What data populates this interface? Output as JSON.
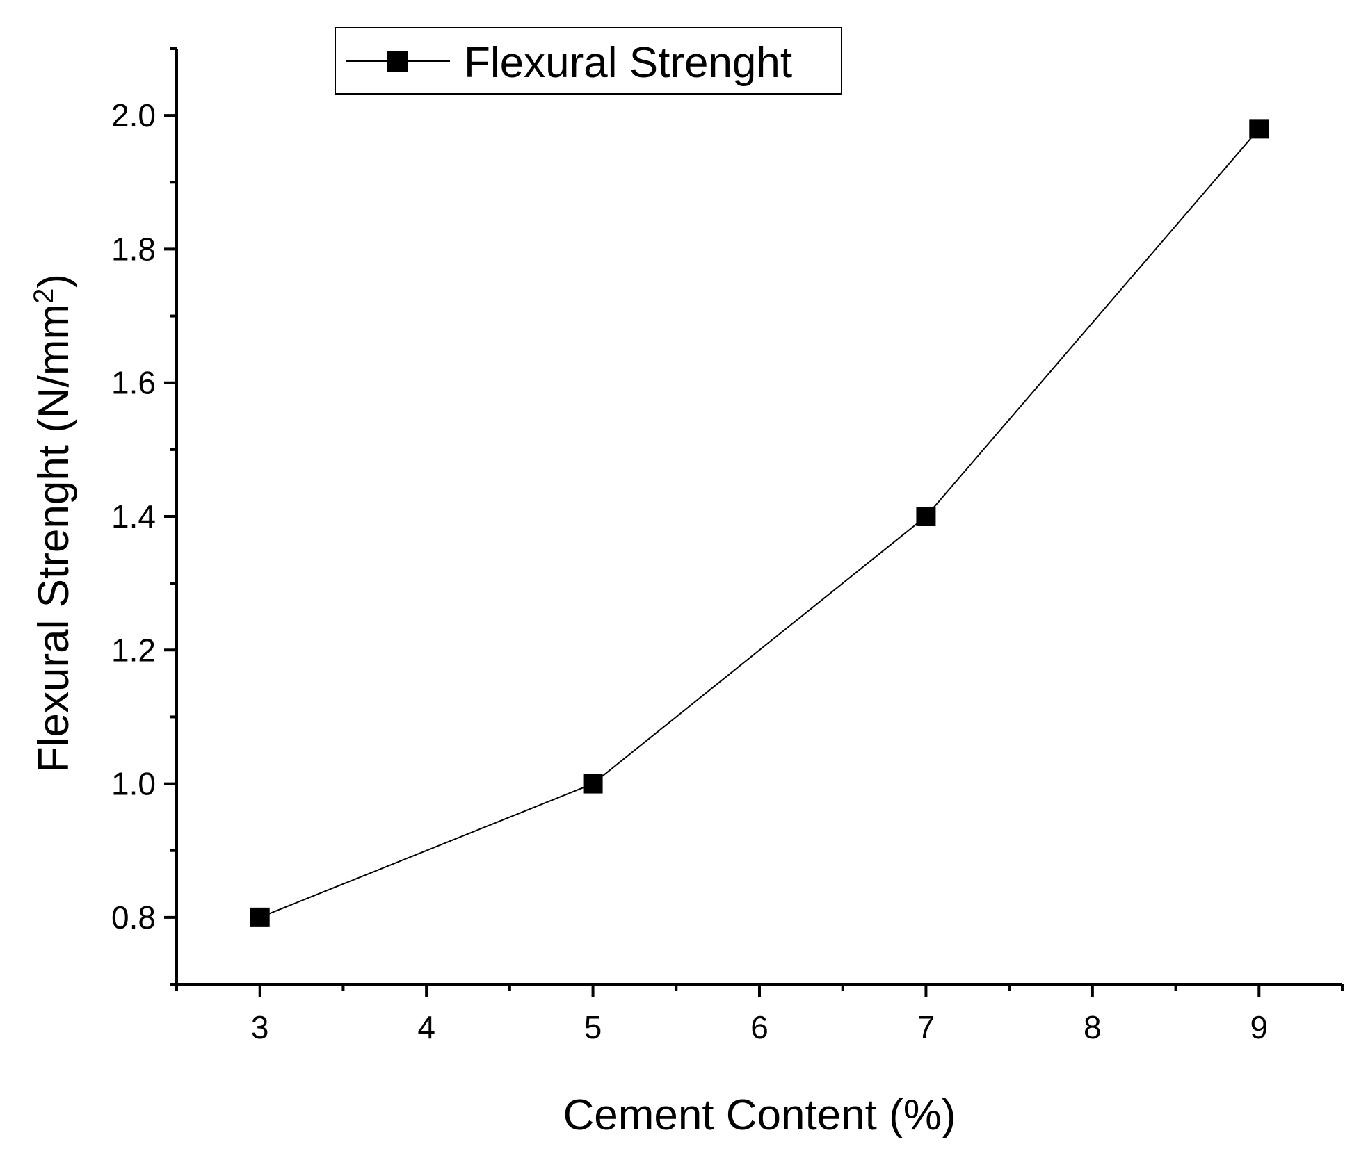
{
  "chart_data": {
    "type": "line",
    "title": "",
    "xlabel": "Cement Content (%)",
    "ylabel_main": "Flexural Strenght (N/mm",
    "ylabel_sup": "2",
    "ylabel_close": ")",
    "xlim": [
      2.5,
      9.5
    ],
    "ylim": [
      0.7,
      2.1
    ],
    "x_ticks": [
      3,
      4,
      5,
      6,
      7,
      8,
      9
    ],
    "x_tick_labels": [
      "3",
      "4",
      "5",
      "6",
      "7",
      "8",
      "9"
    ],
    "x_minor_ticks": [
      2.5,
      3.5,
      4.5,
      5.5,
      6.5,
      7.5,
      8.5,
      9.5
    ],
    "y_ticks": [
      0.8,
      1.0,
      1.2,
      1.4,
      1.6,
      1.8,
      2.0
    ],
    "y_tick_labels": [
      "0.8",
      "1.0",
      "1.2",
      "1.4",
      "1.6",
      "1.8",
      "2.0"
    ],
    "y_minor_ticks": [
      0.7,
      0.9,
      1.1,
      1.3,
      1.5,
      1.7,
      1.9,
      2.1
    ],
    "grid": false,
    "legend_position": "top-left",
    "series": [
      {
        "name": "Flexural Strenght",
        "marker": "square",
        "color": "#000000",
        "x": [
          3,
          5,
          7,
          9
        ],
        "y": [
          0.8,
          1.0,
          1.4,
          1.98
        ]
      }
    ]
  }
}
